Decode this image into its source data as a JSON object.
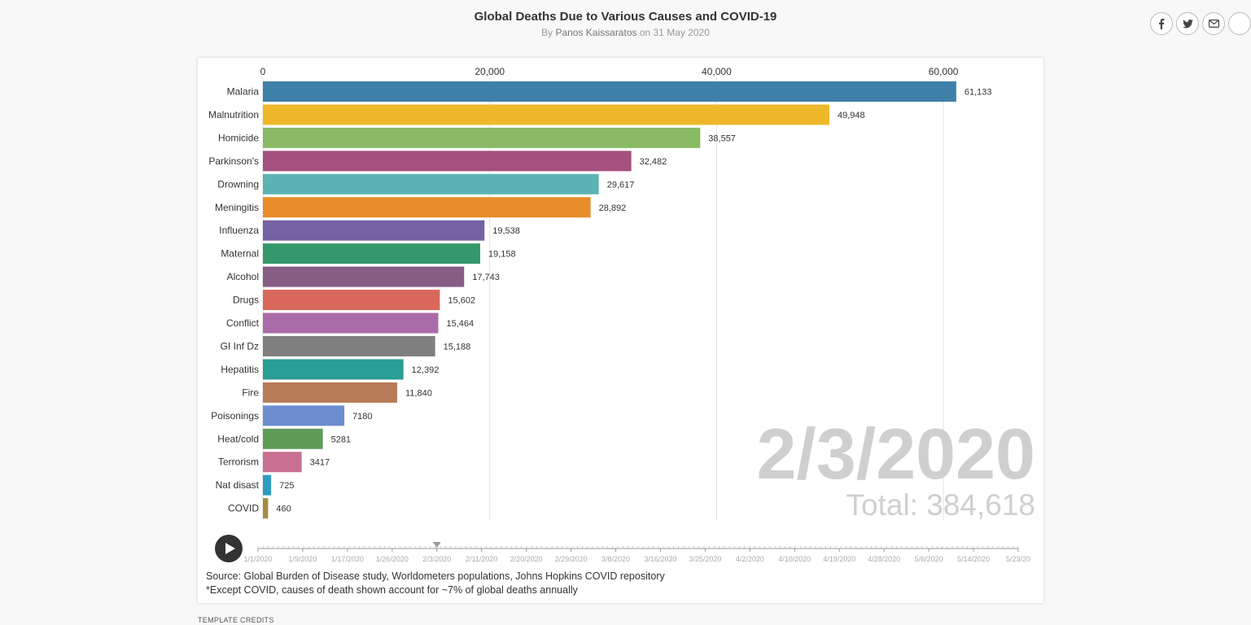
{
  "header": {
    "title": "Global Deaths Due to Various Causes and COVID-19",
    "by_prefix": "By",
    "author": "Panos Kaissaratos",
    "date_text": "on 31 May 2020"
  },
  "share": {
    "facebook_icon": "facebook-icon",
    "twitter_icon": "twitter-icon",
    "email_icon": "envelope-icon"
  },
  "chart_data": {
    "type": "bar",
    "orientation": "horizontal",
    "current_date": "2/3/2020",
    "total_text": "Total: 384,618",
    "xlim": [
      0,
      68000
    ],
    "x_ticks": [
      0,
      20000,
      40000,
      60000
    ],
    "x_tick_labels": [
      "0",
      "20,000",
      "40,000",
      "60,000"
    ],
    "x_axis_position": "top",
    "grid": true,
    "categories": [
      "Malaria",
      "Malnutrition",
      "Homicide",
      "Parkinson's",
      "Drowning",
      "Meningitis",
      "Influenza",
      "Maternal",
      "Alcohol",
      "Drugs",
      "Conflict",
      "GI Inf Dz",
      "Hepatitis",
      "Fire",
      "Poisonings",
      "Heat/cold",
      "Terrorism",
      "Nat disast",
      "COVID"
    ],
    "values": [
      61133,
      49948,
      38557,
      32482,
      29617,
      28892,
      19538,
      19158,
      17743,
      15602,
      15464,
      15188,
      12392,
      11840,
      7180,
      5281,
      3417,
      725,
      460
    ],
    "value_labels": [
      "61,133",
      "49,948",
      "38,557",
      "32,482",
      "29,617",
      "28,892",
      "19,538",
      "19,158",
      "17,743",
      "15,602",
      "15,464",
      "15,188",
      "12,392",
      "11,840",
      "7180",
      "5281",
      "3417",
      "725",
      "460"
    ],
    "colors": [
      "#3f80a8",
      "#eeb82a",
      "#88bb63",
      "#a5507e",
      "#5bb4b3",
      "#e98d2b",
      "#7561a4",
      "#33996b",
      "#875c85",
      "#d9685c",
      "#ab6ba8",
      "#7f7f7f",
      "#2a9d94",
      "#b87a57",
      "#6d8dd0",
      "#5f9c58",
      "#c96f91",
      "#2e9bc2",
      "#a58b45"
    ]
  },
  "timeline": {
    "play_label": "play-icon",
    "current_index": 4,
    "labels": [
      "1/1/2020",
      "1/9/2020",
      "1/17/2020",
      "1/26/2020",
      "2/3/2020",
      "2/11/2020",
      "2/20/2020",
      "2/29/2020",
      "3/8/2020",
      "3/16/2020",
      "3/25/2020",
      "4/2/2020",
      "4/10/2020",
      "4/19/2020",
      "4/28/2020",
      "5/6/2020",
      "5/14/2020",
      "5/23/20"
    ]
  },
  "source": {
    "line1": "Source: Global Burden of Disease study, Worldometers populations, Johns Hopkins COVID repository",
    "line2": "*Except COVID, causes of death shown account for ~7% of global deaths annually"
  },
  "credits": "TEMPLATE CREDITS"
}
